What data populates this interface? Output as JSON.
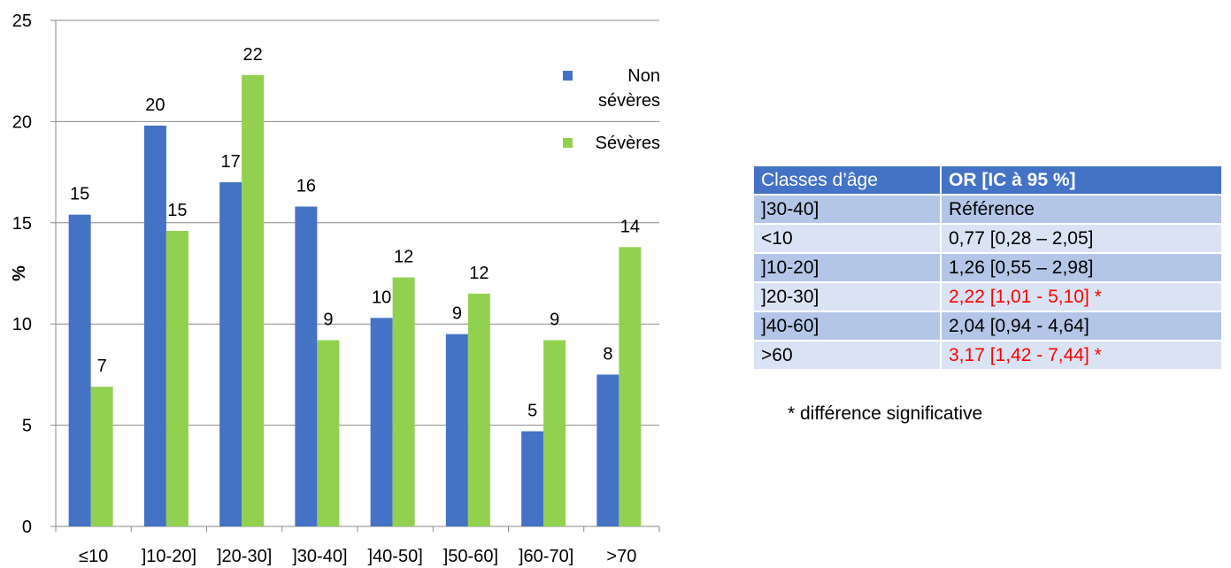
{
  "chart_data": {
    "type": "bar",
    "categories": [
      "≤10",
      "]10-20]",
      "]20-30]",
      "]30-40]",
      "]40-50]",
      "]50-60]",
      "]60-70]",
      ">70"
    ],
    "series": [
      {
        "name": "Non sévères",
        "values": [
          15.4,
          19.8,
          17.0,
          15.8,
          10.3,
          9.5,
          4.7,
          7.5
        ],
        "labels": [
          "15",
          "20",
          "17",
          "16",
          "10",
          "9",
          "5",
          "8"
        ],
        "color": "#4472c4"
      },
      {
        "name": "Sévères",
        "values": [
          6.9,
          14.6,
          22.3,
          9.2,
          12.3,
          11.5,
          9.2,
          13.8
        ],
        "labels": [
          "7",
          "15",
          "22",
          "9",
          "12",
          "12",
          "9",
          "14"
        ],
        "color": "#92d050"
      }
    ],
    "ylabel": "%",
    "ylim": [
      0,
      25
    ],
    "yticks": [
      0,
      5,
      10,
      15,
      20,
      25
    ],
    "grid": true,
    "legend_position": "top-right",
    "legend": {
      "items": [
        {
          "lines": [
            "Non",
            "sévères"
          ],
          "color": "#4472c4"
        },
        {
          "lines": [
            "Sévères"
          ],
          "color": "#92d050"
        }
      ]
    }
  },
  "table": {
    "headers": [
      "Classes d’âge",
      "OR [IC à 95 %]"
    ],
    "rows": [
      {
        "classe": "]30-40]",
        "or": "Référence",
        "significant": false
      },
      {
        "classe": "<10",
        "or": "0,77 [0,28 – 2,05]",
        "significant": false
      },
      {
        "classe": "]10-20]",
        "or": "1,26 [0,55 – 2,98]",
        "significant": false
      },
      {
        "classe": "]20-30]",
        "or": "2,22 [1,01 - 5,10] *",
        "significant": true
      },
      {
        "classe": "]40-60]",
        "or": "2,04 [0,94 - 4,64]",
        "significant": false
      },
      {
        "classe": ">60",
        "or": "3,17 [1,42 - 7,44] *",
        "significant": true
      }
    ],
    "footnote": "* différence significative",
    "colors": {
      "header": "#4472c4",
      "row_dark": "#b4c6e7",
      "row_light": "#dae3f3",
      "significant": "#ff0000"
    }
  }
}
